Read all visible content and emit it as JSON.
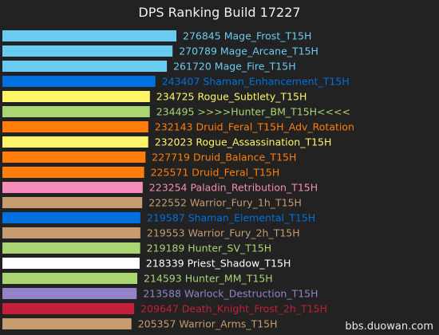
{
  "chart_data": {
    "type": "bar",
    "orientation": "horizontal",
    "title": "DPS Ranking Build 17227",
    "xlim": [
      0,
      276845
    ],
    "grid": false,
    "legend": "none",
    "bars": [
      {
        "label": "Mage_Frost_T15H",
        "value": 276845,
        "color": "#69ccf0",
        "text_color": "#69ccf0"
      },
      {
        "label": "Mage_Arcane_T15H",
        "value": 270789,
        "color": "#69ccf0",
        "text_color": "#69ccf0"
      },
      {
        "label": "Mage_Fire_T15H",
        "value": 261720,
        "color": "#69ccf0",
        "text_color": "#69ccf0"
      },
      {
        "label": "Shaman_Enhancement_T15H",
        "value": 243407,
        "color": "#0070de",
        "text_color": "#0070de"
      },
      {
        "label": "Rogue_Subtlety_T15H",
        "value": 234725,
        "color": "#fff569",
        "text_color": "#fff569"
      },
      {
        "label": ">>>>Hunter_BM_T15H<<<<",
        "value": 234495,
        "color": "#abd473",
        "text_color": "#abd473"
      },
      {
        "label": "Druid_Feral_T15H_Adv_Rotation",
        "value": 232143,
        "color": "#ff7d0a",
        "text_color": "#ff7d0a"
      },
      {
        "label": "Rogue_Assassination_T15H",
        "value": 232023,
        "color": "#fff569",
        "text_color": "#fff569"
      },
      {
        "label": "Druid_Balance_T15H",
        "value": 227719,
        "color": "#ff7d0a",
        "text_color": "#ff7d0a"
      },
      {
        "label": "Druid_Feral_T15H",
        "value": 225571,
        "color": "#ff7d0a",
        "text_color": "#ff7d0a"
      },
      {
        "label": "Paladin_Retribution_T15H",
        "value": 223254,
        "color": "#f58cba",
        "text_color": "#f58cba"
      },
      {
        "label": "Warrior_Fury_1h_T15H",
        "value": 222552,
        "color": "#c79c6e",
        "text_color": "#c79c6e"
      },
      {
        "label": "Shaman_Elemental_T15H",
        "value": 219587,
        "color": "#0070de",
        "text_color": "#0070de"
      },
      {
        "label": "Warrior_Fury_2h_T15H",
        "value": 219553,
        "color": "#c79c6e",
        "text_color": "#c79c6e"
      },
      {
        "label": "Hunter_SV_T15H",
        "value": 219189,
        "color": "#abd473",
        "text_color": "#abd473"
      },
      {
        "label": "Priest_Shadow_T15H",
        "value": 218339,
        "color": "#ffffff",
        "text_color": "#ffffff"
      },
      {
        "label": "Hunter_MM_T15H",
        "value": 214593,
        "color": "#abd473",
        "text_color": "#abd473"
      },
      {
        "label": "Warlock_Destruction_T15H",
        "value": 213588,
        "color": "#9482c9",
        "text_color": "#9482c9"
      },
      {
        "label": "Death_Knight_Frost_2h_T15H",
        "value": 209647,
        "color": "#c41f3b",
        "text_color": "#c41f3b"
      },
      {
        "label": "Warrior_Arms_T15H",
        "value": 205357,
        "color": "#c79c6e",
        "text_color": "#c79c6e"
      }
    ]
  },
  "watermark": "bbs.duowan.com",
  "colors": {
    "background": "#222222",
    "title": "#f0f0f0"
  }
}
